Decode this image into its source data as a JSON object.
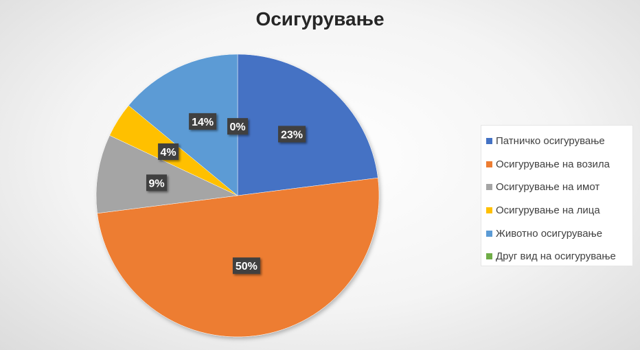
{
  "chart_data": {
    "type": "pie",
    "title": "Осигурување",
    "categories": [
      "Патничко осигурување",
      "Осигурување на возила",
      "Осигурување на имот",
      "Осигурување на лица",
      "Животно осигурување",
      "Друг вид на осигурување"
    ],
    "values": [
      23,
      50,
      9,
      4,
      14,
      0
    ],
    "data_labels": [
      "23%",
      "50%",
      "9%",
      "4%",
      "14%",
      "0%"
    ],
    "colors": [
      "#4472C4",
      "#ED7D31",
      "#A5A5A5",
      "#FFC000",
      "#5B9BD5",
      "#70AD47"
    ],
    "legend": "right"
  }
}
